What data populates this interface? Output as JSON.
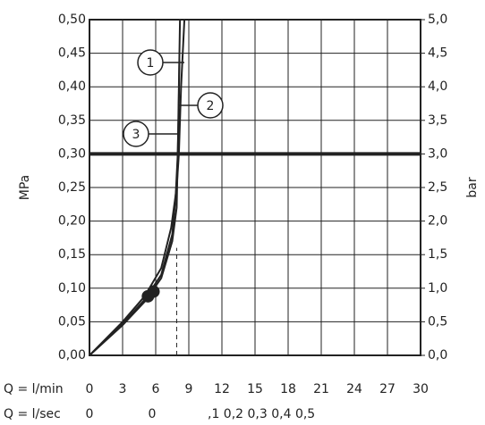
{
  "chart_data": {
    "type": "line",
    "x_label": "Q = l/min",
    "y_label": "MPa",
    "y2_label": "bar",
    "xlim": [
      0,
      30
    ],
    "xticks": [
      0,
      3,
      6,
      9,
      12,
      15,
      18,
      21,
      24,
      27,
      30
    ],
    "ylim": [
      0,
      0.5
    ],
    "yticks": [
      {
        "value": 0,
        "label": "0,00"
      },
      {
        "value": 0.05,
        "label": "0,05"
      },
      {
        "value": 0.1,
        "label": "0,10"
      },
      {
        "value": 0.15,
        "label": "0,15"
      },
      {
        "value": 0.2,
        "label": "0,20"
      },
      {
        "value": 0.25,
        "label": "0,25"
      },
      {
        "value": 0.3,
        "label": "0,30"
      },
      {
        "value": 0.35,
        "label": "0,35"
      },
      {
        "value": 0.4,
        "label": "0,40"
      },
      {
        "value": 0.45,
        "label": "0,45"
      },
      {
        "value": 0.5,
        "label": "0,50"
      }
    ],
    "y2lim": [
      0,
      5
    ],
    "y2ticks": [
      {
        "value": 0,
        "label": "0,0"
      },
      {
        "value": 0.5,
        "label": "0,5"
      },
      {
        "value": 1,
        "label": "1,0"
      },
      {
        "value": 1.5,
        "label": "1,5"
      },
      {
        "value": 2,
        "label": "2,0"
      },
      {
        "value": 2.5,
        "label": "2,5"
      },
      {
        "value": 3,
        "label": "3,0"
      },
      {
        "value": 3.5,
        "label": "3,5"
      },
      {
        "value": 4,
        "label": "4,0"
      },
      {
        "value": 4.5,
        "label": "4,5"
      },
      {
        "value": 5,
        "label": "5,0"
      }
    ],
    "secondary_x_label": "Q = l/sec",
    "secondary_x_texts": [
      "0",
      "0",
      ",1 0,2 0,3 0,4 0,5"
    ],
    "grid": true,
    "color": "#222222",
    "threshold": 0.3,
    "dashed_line": {
      "x": 7.9,
      "y": 0.16
    },
    "points": {
      "x": [
        5.3,
        5.8
      ],
      "values": [
        0.088,
        0.095
      ]
    },
    "series": [
      {
        "name": "1",
        "color": "#222222",
        "x": [
          0,
          3,
          5,
          6.5,
          7.4,
          7.9,
          8.1,
          8.3,
          8.6
        ],
        "values": [
          0,
          0.05,
          0.088,
          0.13,
          0.19,
          0.25,
          0.3,
          0.4,
          0.5
        ]
      },
      {
        "name": "2",
        "color": "#222222",
        "x": [
          0,
          3,
          5,
          6.5,
          7.5,
          7.9,
          8.0,
          8.1,
          8.2
        ],
        "values": [
          0,
          0.045,
          0.08,
          0.115,
          0.17,
          0.22,
          0.3,
          0.4,
          0.5
        ]
      },
      {
        "name": "3",
        "color": "#222222",
        "x": [
          0,
          3,
          5,
          6.5,
          7.5,
          7.8,
          8.0,
          8.1,
          8.15
        ],
        "values": [
          0,
          0.047,
          0.083,
          0.12,
          0.18,
          0.235,
          0.3,
          0.38,
          0.44
        ]
      }
    ]
  }
}
